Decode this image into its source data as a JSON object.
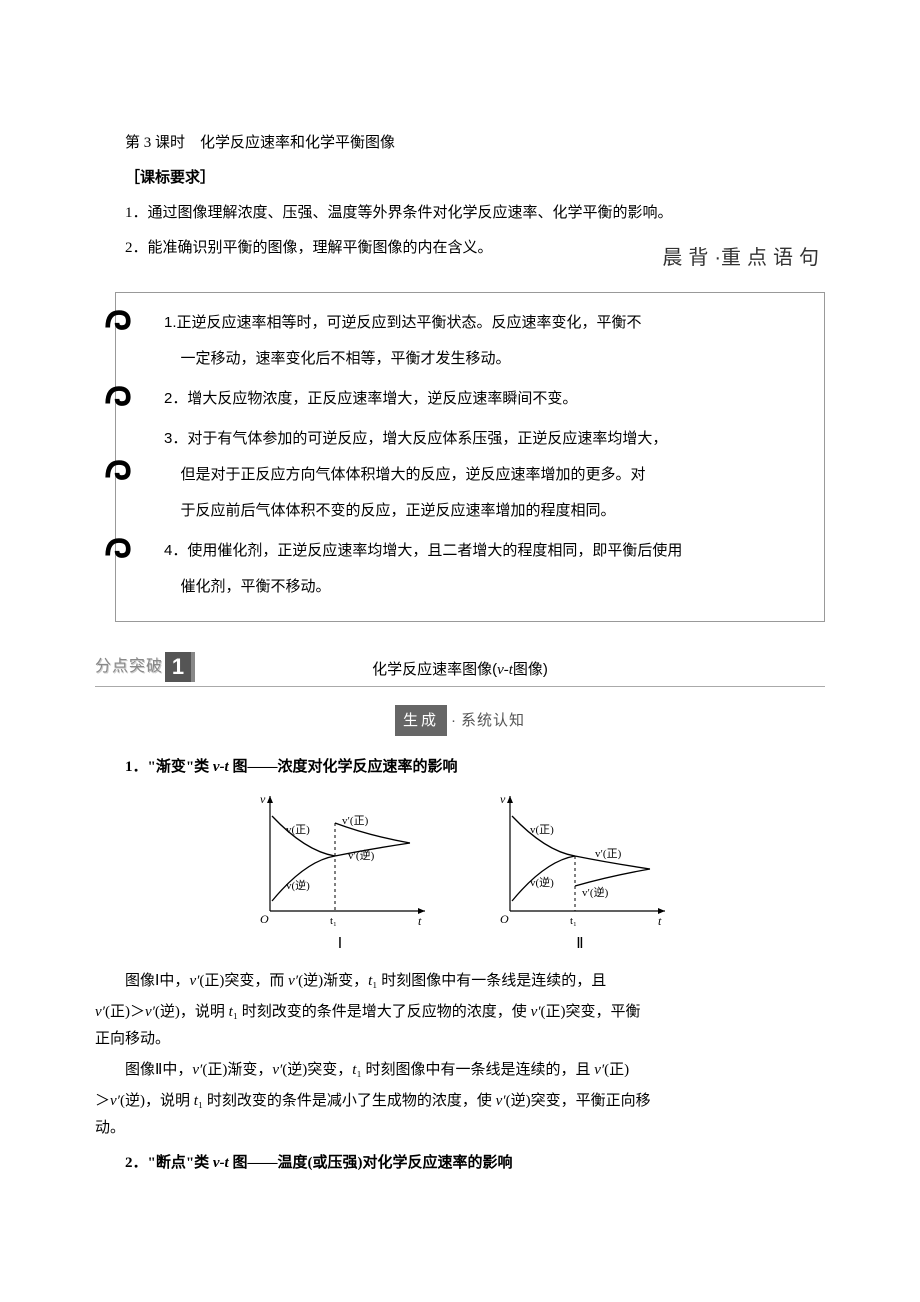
{
  "title": "第 3 课时　化学反应速率和化学平衡图像",
  "kebiao_label": "［课标要求］",
  "objectives": [
    "1．通过图像理解浓度、压强、温度等外界条件对化学反应速率、化学平衡的影响。",
    "2．能准确识别平衡的图像，理解平衡图像的内在含义。"
  ],
  "chenbei": {
    "left": "晨背",
    "dot": "·",
    "right": "重点语句"
  },
  "key_points": [
    {
      "line1": "1.正逆反应速率相等时，可逆反应到达平衡状态。反应速率变化，平衡不",
      "cont": "一定移动，速率变化后不相等，平衡才发生移动。"
    },
    {
      "line1": "2．增大反应物浓度，正反应速率增大，逆反应速率瞬间不变。"
    },
    {
      "line1": "3．对于有气体参加的可逆反应，增大反应体系压强，正逆反应速率均增大，",
      "cont": "但是对于正反应方向气体体积增大的反应，逆反应速率增加的更多。对",
      "cont2": "于反应前后气体体积不变的反应，正逆反应速率增加的程度相同。"
    },
    {
      "line1": "4．使用催化剂，正逆反应速率均增大，且二者增大的程度相同，即平衡后使用",
      "cont": "催化剂，平衡不移动。"
    }
  ],
  "breakthrough": {
    "label": "分点突破",
    "num": "1"
  },
  "section1_title_before": "化学反应速率图像(",
  "section1_title_vt": "v-t",
  "section1_title_after": "图像)",
  "shengcheng": {
    "badge": "生成",
    "dot": "·",
    "tail": "系统认知"
  },
  "sub1": {
    "prefix": "1．\"渐变\"类 ",
    "vt": "v-t",
    "suffix": " 图——浓度对化学反应速率的影响"
  },
  "diagrams": {
    "axis_v": "v",
    "axis_t": "t",
    "t1_label": "t₁",
    "labels": {
      "vzheng": "v(正)",
      "vni": "v(逆)",
      "vpzheng": "v′(正)",
      "vpni": "v′(逆)"
    },
    "roman1": "Ⅰ",
    "roman2": "Ⅱ",
    "colors": {
      "line": "#000000",
      "dash": "#000000",
      "bg": "#ffffff"
    }
  },
  "para1": {
    "pieces": [
      {
        "t": "图像Ⅰ中，"
      },
      {
        "t": "v′",
        "i": true
      },
      {
        "t": "(正)突变，而 "
      },
      {
        "t": "v′",
        "i": true
      },
      {
        "t": "(逆)渐变，"
      },
      {
        "t": "t",
        "i": true
      },
      {
        "t": "₁ 时刻图像中有一条线是连续的，且"
      }
    ]
  },
  "para1b": {
    "pieces": [
      {
        "t": "v′",
        "i": true
      },
      {
        "t": "(正)＞"
      },
      {
        "t": "v′",
        "i": true
      },
      {
        "t": "(逆)，说明 "
      },
      {
        "t": "t",
        "i": true
      },
      {
        "t": "₁ 时刻改变的条件是增大了反应物的浓度，使 "
      },
      {
        "t": "v′",
        "i": true
      },
      {
        "t": "(正)突变，平衡"
      }
    ]
  },
  "para1c": "正向移动。",
  "para2": {
    "pieces": [
      {
        "t": "图像Ⅱ中，"
      },
      {
        "t": "v′",
        "i": true
      },
      {
        "t": "(正)渐变，"
      },
      {
        "t": "v′",
        "i": true
      },
      {
        "t": "(逆)突变，"
      },
      {
        "t": "t",
        "i": true
      },
      {
        "t": "₁ 时刻图像中有一条线是连续的，且 "
      },
      {
        "t": "v′",
        "i": true
      },
      {
        "t": "(正)"
      }
    ]
  },
  "para2b": {
    "pieces": [
      {
        "t": "＞"
      },
      {
        "t": "v′",
        "i": true
      },
      {
        "t": "(逆)，说明 "
      },
      {
        "t": "t",
        "i": true
      },
      {
        "t": "₁ 时刻改变的条件是减小了生成物的浓度，使 "
      },
      {
        "t": "v′",
        "i": true
      },
      {
        "t": "(逆)突变，平衡正向移"
      }
    ]
  },
  "para2c": "动。",
  "sub2": {
    "prefix": "2．\"断点\"类 ",
    "vt": "v-t",
    "suffix": " 图——温度(或压强)对化学反应速率的影响"
  }
}
